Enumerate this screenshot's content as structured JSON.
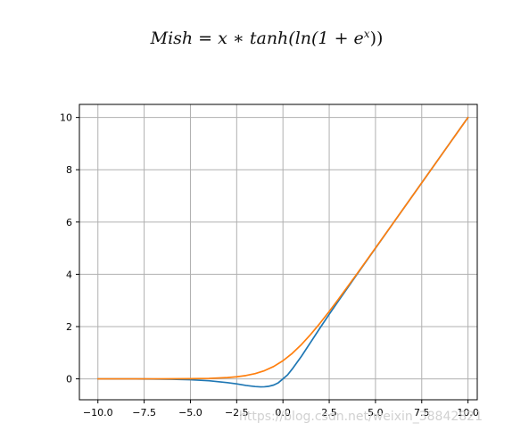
{
  "chart_data": {
    "type": "line",
    "title": "Mish = x * tanh(ln(1 + eˣ))",
    "title_parts": {
      "lhs": "Mish",
      "eq": " = ",
      "x": "x",
      "op": " ∗ ",
      "fn": "tanh(ln(1 + e",
      "sup": "x",
      "close": "))"
    },
    "xlabel": "",
    "ylabel": "",
    "xlim": [
      -11,
      10.5
    ],
    "ylim": [
      -0.8,
      10.5
    ],
    "x_ticks": [
      -10.0,
      -7.5,
      -5.0,
      -2.5,
      0.0,
      2.5,
      5.0,
      7.5,
      10.0
    ],
    "x_tick_labels": [
      "−10.0",
      "−7.5",
      "−5.0",
      "−2.5",
      "0.0",
      "2.5",
      "5.0",
      "7.5",
      "10.0"
    ],
    "y_ticks": [
      0,
      2,
      4,
      6,
      8,
      10
    ],
    "y_tick_labels": [
      "0",
      "2",
      "4",
      "6",
      "8",
      "10"
    ],
    "grid": true,
    "colors": {
      "series_1": "#1f77b4",
      "series_2": "#ff7f0e",
      "grid": "#b0b0b0",
      "axes": "#000000"
    },
    "series": [
      {
        "function": "mish",
        "x": [
          -10,
          -9,
          -8,
          -7,
          -6,
          -5,
          -4,
          -3,
          -2.5,
          -2,
          -1.5,
          -1.2,
          -1,
          -0.8,
          -0.5,
          -0.25,
          0,
          0.25,
          0.5,
          1,
          1.5,
          2,
          2.5,
          3,
          4,
          5,
          6,
          7,
          8,
          9,
          10
        ],
        "y": [
          -0.0005,
          -0.0011,
          -0.0027,
          -0.0064,
          -0.0149,
          -0.0336,
          -0.0727,
          -0.1456,
          -0.1914,
          -0.2525,
          -0.2939,
          -0.3077,
          -0.3034,
          -0.2889,
          -0.2369,
          -0.1496,
          0.0,
          0.1515,
          0.3752,
          0.8651,
          1.4034,
          1.944,
          2.4702,
          2.9865,
          3.9974,
          4.9996,
          5.9999,
          7.0,
          8.0,
          9.0,
          10.0
        ]
      },
      {
        "function": "softplus",
        "x": [
          -10,
          -9,
          -8,
          -7,
          -6,
          -5,
          -4,
          -3,
          -2.5,
          -2,
          -1.5,
          -1,
          -0.5,
          0,
          0.5,
          1,
          1.5,
          2,
          2.5,
          3,
          4,
          5,
          6,
          7,
          8,
          9,
          10
        ],
        "y": [
          0.0,
          0.0001,
          0.0003,
          0.0009,
          0.0025,
          0.0067,
          0.0181,
          0.0486,
          0.0789,
          0.1269,
          0.2014,
          0.3133,
          0.4741,
          0.6931,
          0.9741,
          1.3133,
          1.7014,
          2.1269,
          2.5789,
          3.0486,
          4.0181,
          5.0067,
          6.0025,
          7.0009,
          8.0003,
          9.0001,
          10.0
        ]
      }
    ]
  },
  "watermark": "https://blog.csdn.net/weixin_38842821"
}
